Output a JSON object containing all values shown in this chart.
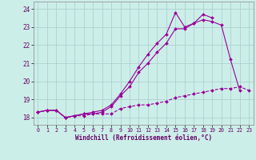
{
  "xlabel": "Windchill (Refroidissement éolien,°C)",
  "bg_color": "#cceee8",
  "grid_color": "#aacccc",
  "line_color": "#990099",
  "x_ticks": [
    0,
    1,
    2,
    3,
    4,
    5,
    6,
    7,
    8,
    9,
    10,
    11,
    12,
    13,
    14,
    15,
    16,
    17,
    18,
    19,
    20,
    21,
    22,
    23
  ],
  "y_ticks": [
    18,
    19,
    20,
    21,
    22,
    23,
    24
  ],
  "xlim": [
    -0.5,
    23.5
  ],
  "ylim": [
    17.6,
    24.4
  ],
  "series": [
    {
      "x": [
        0,
        1,
        2,
        3,
        4,
        5,
        6,
        7,
        8,
        9,
        10,
        11,
        12,
        13,
        14,
        15,
        16,
        17,
        18,
        19,
        20,
        21,
        22,
        23
      ],
      "y": [
        18.3,
        18.4,
        18.4,
        18.0,
        18.1,
        18.1,
        18.2,
        18.2,
        18.2,
        18.5,
        18.6,
        18.7,
        18.7,
        18.8,
        18.9,
        19.1,
        19.2,
        19.3,
        19.4,
        19.5,
        19.6,
        19.6,
        19.7,
        19.5
      ],
      "marker": "D",
      "ms": 2.0,
      "lw": 0.8,
      "ls": "--"
    },
    {
      "x": [
        0,
        1,
        2,
        3,
        4,
        5,
        6,
        7,
        8,
        9,
        10,
        11,
        12,
        13,
        14,
        15,
        16,
        17,
        18,
        19,
        20,
        21,
        22
      ],
      "y": [
        18.3,
        18.4,
        18.4,
        18.0,
        18.1,
        18.2,
        18.2,
        18.3,
        18.6,
        19.2,
        19.7,
        20.5,
        21.0,
        21.6,
        22.1,
        22.9,
        22.9,
        23.2,
        23.4,
        23.3,
        23.1,
        21.2,
        19.5
      ],
      "marker": "D",
      "ms": 2.0,
      "lw": 0.8,
      "ls": "-"
    },
    {
      "x": [
        0,
        1,
        2,
        3,
        4,
        5,
        6,
        7,
        8,
        9,
        10,
        11,
        12,
        13,
        14,
        15,
        16,
        17,
        18,
        19
      ],
      "y": [
        18.3,
        18.4,
        18.4,
        18.0,
        18.1,
        18.2,
        18.3,
        18.4,
        18.7,
        19.3,
        20.0,
        20.8,
        21.5,
        22.1,
        22.6,
        23.8,
        23.0,
        23.2,
        23.7,
        23.5
      ],
      "marker": "D",
      "ms": 2.0,
      "lw": 0.8,
      "ls": "-"
    }
  ]
}
